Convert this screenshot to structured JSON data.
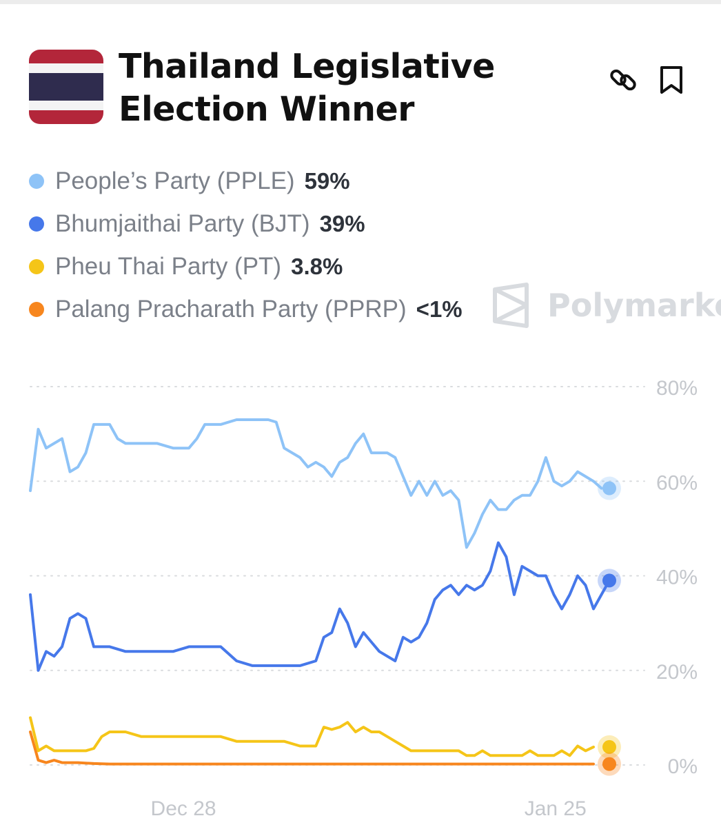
{
  "market": {
    "title": "Thailand Legislative Election Winner",
    "flag_icon": "thailand-flag-icon",
    "actions": {
      "link_icon": "link-icon",
      "bookmark_icon": "bookmark-icon"
    }
  },
  "legend": [
    {
      "name": "People’s Party (PPLE)",
      "value": "59%",
      "color": "#8ec3f7"
    },
    {
      "name": "Bhumjaithai Party (BJT)",
      "value": "39%",
      "color": "#4678ea"
    },
    {
      "name": "Pheu Thai Party (PT)",
      "value": "3.8%",
      "color": "#f5c518"
    },
    {
      "name": "Palang Pracharath Party (PPRP)",
      "value": "<1%",
      "color": "#f7861e"
    }
  ],
  "watermark": {
    "text": "Polymarke",
    "icon": "polymarket-logo-icon"
  },
  "chart_data": {
    "type": "line",
    "ylim": [
      0,
      80
    ],
    "y_ticks": [
      "80%",
      "60%",
      "40%",
      "20%",
      "0%"
    ],
    "x_ticks": [
      "Dec 28",
      "Jan 25"
    ],
    "grid": true,
    "series": [
      {
        "name": "People’s Party (PPLE)",
        "color": "#8ec3f7",
        "points": [
          [
            0,
            58
          ],
          [
            1,
            71
          ],
          [
            2,
            67
          ],
          [
            4,
            69
          ],
          [
            5,
            62
          ],
          [
            6,
            63
          ],
          [
            7,
            66
          ],
          [
            8,
            72
          ],
          [
            10,
            72
          ],
          [
            11,
            69
          ],
          [
            12,
            68
          ],
          [
            16,
            68
          ],
          [
            18,
            67
          ],
          [
            20,
            67
          ],
          [
            21,
            69
          ],
          [
            22,
            72
          ],
          [
            24,
            72
          ],
          [
            26,
            73
          ],
          [
            30,
            73
          ],
          [
            31,
            72.5
          ],
          [
            32,
            67
          ],
          [
            34,
            65
          ],
          [
            35,
            63
          ],
          [
            36,
            64
          ],
          [
            37,
            63
          ],
          [
            38,
            61
          ],
          [
            39,
            64
          ],
          [
            40,
            65
          ],
          [
            41,
            68
          ],
          [
            42,
            70
          ],
          [
            43,
            66
          ],
          [
            45,
            66
          ],
          [
            46,
            65
          ],
          [
            47,
            61
          ],
          [
            48,
            57
          ],
          [
            49,
            60
          ],
          [
            50,
            57
          ],
          [
            51,
            60
          ],
          [
            52,
            57
          ],
          [
            53,
            58
          ],
          [
            54,
            56
          ],
          [
            55,
            46
          ],
          [
            56,
            49
          ],
          [
            57,
            53
          ],
          [
            58,
            56
          ],
          [
            59,
            54
          ],
          [
            60,
            54
          ],
          [
            61,
            56
          ],
          [
            62,
            57
          ],
          [
            63,
            57
          ],
          [
            64,
            60
          ],
          [
            65,
            65
          ],
          [
            66,
            60
          ],
          [
            67,
            59
          ],
          [
            68,
            60
          ],
          [
            69,
            62
          ],
          [
            70,
            61
          ],
          [
            71,
            60
          ],
          [
            72,
            58.5
          ]
        ]
      },
      {
        "name": "Bhumjaithai Party (BJT)",
        "color": "#4678ea",
        "points": [
          [
            0,
            36
          ],
          [
            1,
            20
          ],
          [
            2,
            24
          ],
          [
            3,
            23
          ],
          [
            4,
            25
          ],
          [
            5,
            31
          ],
          [
            6,
            32
          ],
          [
            7,
            31
          ],
          [
            8,
            25
          ],
          [
            10,
            25
          ],
          [
            12,
            24
          ],
          [
            18,
            24
          ],
          [
            20,
            25
          ],
          [
            22,
            25
          ],
          [
            24,
            25
          ],
          [
            26,
            22
          ],
          [
            28,
            21
          ],
          [
            34,
            21
          ],
          [
            36,
            22
          ],
          [
            37,
            27
          ],
          [
            38,
            28
          ],
          [
            39,
            33
          ],
          [
            40,
            30
          ],
          [
            41,
            25
          ],
          [
            42,
            28
          ],
          [
            43,
            26
          ],
          [
            44,
            24
          ],
          [
            45,
            23
          ],
          [
            46,
            22
          ],
          [
            47,
            27
          ],
          [
            48,
            26
          ],
          [
            49,
            27
          ],
          [
            50,
            30
          ],
          [
            51,
            35
          ],
          [
            52,
            37
          ],
          [
            53,
            38
          ],
          [
            54,
            36
          ],
          [
            55,
            38
          ],
          [
            56,
            37
          ],
          [
            57,
            38
          ],
          [
            58,
            41
          ],
          [
            59,
            47
          ],
          [
            60,
            44
          ],
          [
            61,
            36
          ],
          [
            62,
            42
          ],
          [
            63,
            41
          ],
          [
            64,
            40
          ],
          [
            65,
            40
          ],
          [
            66,
            36
          ],
          [
            67,
            33
          ],
          [
            68,
            36
          ],
          [
            69,
            40
          ],
          [
            70,
            38
          ],
          [
            71,
            33
          ],
          [
            72,
            36
          ],
          [
            73,
            39
          ]
        ]
      },
      {
        "name": "Pheu Thai Party (PT)",
        "color": "#f5c518",
        "points": [
          [
            0,
            10
          ],
          [
            1,
            3
          ],
          [
            2,
            4
          ],
          [
            3,
            3
          ],
          [
            5,
            3
          ],
          [
            7,
            3
          ],
          [
            8,
            3.5
          ],
          [
            9,
            6
          ],
          [
            10,
            7
          ],
          [
            12,
            7
          ],
          [
            14,
            6
          ],
          [
            16,
            6
          ],
          [
            20,
            6
          ],
          [
            24,
            6
          ],
          [
            26,
            5
          ],
          [
            30,
            5
          ],
          [
            32,
            5
          ],
          [
            34,
            4
          ],
          [
            36,
            4
          ],
          [
            37,
            8
          ],
          [
            38,
            7.5
          ],
          [
            39,
            8
          ],
          [
            40,
            9
          ],
          [
            41,
            7
          ],
          [
            42,
            8
          ],
          [
            43,
            7
          ],
          [
            44,
            7
          ],
          [
            45,
            6
          ],
          [
            46,
            5
          ],
          [
            47,
            4
          ],
          [
            48,
            3
          ],
          [
            49,
            3
          ],
          [
            52,
            3
          ],
          [
            54,
            3
          ],
          [
            55,
            2
          ],
          [
            56,
            2
          ],
          [
            57,
            3
          ],
          [
            58,
            2
          ],
          [
            60,
            2
          ],
          [
            62,
            2
          ],
          [
            63,
            3
          ],
          [
            64,
            2
          ],
          [
            65,
            2
          ],
          [
            66,
            2
          ],
          [
            67,
            3
          ],
          [
            68,
            2
          ],
          [
            69,
            4
          ],
          [
            70,
            3
          ],
          [
            71,
            3.8
          ]
        ]
      },
      {
        "name": "Palang Pracharath Party (PPRP)",
        "color": "#f7861e",
        "points": [
          [
            0,
            7
          ],
          [
            1,
            1
          ],
          [
            2,
            0.5
          ],
          [
            3,
            1
          ],
          [
            4,
            0.5
          ],
          [
            6,
            0.5
          ],
          [
            8,
            0.3
          ],
          [
            10,
            0.2
          ],
          [
            20,
            0.2
          ],
          [
            40,
            0.2
          ],
          [
            60,
            0.2
          ],
          [
            71,
            0.2
          ]
        ]
      }
    ]
  }
}
